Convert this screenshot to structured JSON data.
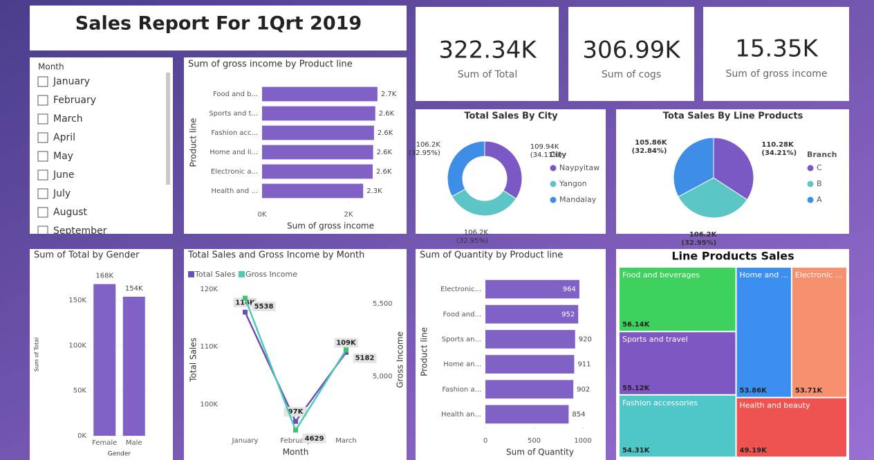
{
  "title": "Sales Report For 1Qrt 2019",
  "kpis": [
    {
      "value": "322.34K",
      "label": "Sum of Total"
    },
    {
      "value": "306.99K",
      "label": "Sum of cogs"
    },
    {
      "value": "15.35K",
      "label": "Sum of gross income"
    }
  ],
  "slicer": {
    "title": "Month",
    "items": [
      "January",
      "February",
      "March",
      "April",
      "May",
      "June",
      "July",
      "August",
      "September"
    ]
  },
  "chart_data": [
    {
      "type": "hbar",
      "title": "Sum of gross income by Product line",
      "x_label": "Sum of gross income",
      "y_label": "Product line",
      "categories": [
        "Food and b...",
        "Sports and t...",
        "Fashion acc...",
        "Home and li...",
        "Electronic a...",
        "Health and ..."
      ],
      "values": [
        2670,
        2620,
        2590,
        2570,
        2560,
        2340
      ],
      "value_labels": [
        "2.7K",
        "2.6K",
        "2.6K",
        "2.6K",
        "2.6K",
        "2.3K"
      ],
      "color": "#8062c6",
      "xlim": [
        0,
        2800
      ],
      "xticks": [
        {
          "value": 0,
          "label": "0K"
        },
        {
          "value": 2000,
          "label": "2K"
        }
      ]
    },
    {
      "type": "donut",
      "title": "Total Sales By City",
      "legend_title": "City",
      "categories": [
        "Naypyitaw",
        "Yangon",
        "Mandalay"
      ],
      "values": [
        109940,
        106200,
        106200
      ],
      "value_labels": [
        "109.94K",
        "106.2K",
        "106.2K"
      ],
      "percent_labels": [
        "(34.11%)",
        "(32.95%)",
        "(32.95%)"
      ],
      "colors": [
        "#7b59c4",
        "#5cc6c6",
        "#3e8ee8"
      ]
    },
    {
      "type": "pie",
      "title": "Tota Sales By Line Products",
      "legend_title": "Branch",
      "categories": [
        "C",
        "B",
        "A"
      ],
      "values": [
        110280,
        106200,
        105860
      ],
      "value_labels": [
        "110.28K",
        "106.2K",
        "105.86K"
      ],
      "percent_labels": [
        "(34.21%)",
        "(32.95%)",
        "(32.84%)"
      ],
      "colors": [
        "#7b59c4",
        "#5cc6c6",
        "#3e8ee8"
      ]
    },
    {
      "type": "bar",
      "title": "Sum of Total by Gender",
      "x_label": "Gender",
      "y_label": "Sum of Total",
      "categories": [
        "Female",
        "Male"
      ],
      "values": [
        168000,
        154000
      ],
      "value_labels": [
        "168K",
        "154K"
      ],
      "color": "#8062c6",
      "ylim": [
        0,
        180000
      ],
      "yticks": [
        {
          "value": 0,
          "label": "0K"
        },
        {
          "value": 50000,
          "label": "50K"
        },
        {
          "value": 100000,
          "label": "100K"
        },
        {
          "value": 150000,
          "label": "150K"
        }
      ]
    },
    {
      "type": "line",
      "title": "Total Sales and Gross Income by Month",
      "x_label": "Month",
      "y_label": "Total Sales",
      "y2_label": "Gross Income",
      "categories": [
        "January",
        "February",
        "March"
      ],
      "series": [
        {
          "name": "Total Sales",
          "color": "#6b4fb5",
          "values": [
            116000,
            97000,
            109000
          ],
          "value_labels": [
            "116K",
            "97K",
            "109K"
          ]
        },
        {
          "name": "Gross Income",
          "color": "#4cc9b8",
          "axis": "y2",
          "values": [
            5538,
            4629,
            5182
          ]
        }
      ],
      "ylim": [
        94500,
        120000
      ],
      "yticks": [
        {
          "value": 100000,
          "label": "100K"
        },
        {
          "value": 110000,
          "label": "110K"
        },
        {
          "value": 120000,
          "label": "120K"
        }
      ],
      "y2lim": [
        4590,
        5600
      ],
      "y2ticks": [
        {
          "value": 5000,
          "label": "5,000"
        },
        {
          "value": 5500,
          "label": "5,500"
        }
      ]
    },
    {
      "type": "hbar",
      "title": "Sum of Quantity by Product line",
      "x_label": "Sum of Quantity",
      "y_label": "Product line",
      "categories": [
        "Electronic...",
        "Food and...",
        "Sports an...",
        "Home an...",
        "Fashion a...",
        "Health an..."
      ],
      "values": [
        964,
        952,
        920,
        911,
        902,
        854
      ],
      "color": "#8062c6",
      "xlim": [
        0,
        1000
      ],
      "xticks": [
        0,
        500,
        1000
      ]
    },
    {
      "type": "treemap",
      "title": "Line Products Sales",
      "categories": [
        "Food and beverages",
        "Sports and travel",
        "Fashion accessories",
        "Home and ...",
        "Electronic ...",
        "Health and beauty"
      ],
      "values": [
        56140,
        55120,
        54310,
        53860,
        53710,
        49190
      ],
      "value_labels": [
        "56.14K",
        "55.12K",
        "54.31K",
        "53.86K",
        "53.71K",
        "49.19K"
      ],
      "colors": [
        "#3ed15e",
        "#7e57c2",
        "#4fc7c7",
        "#3b8ff0",
        "#f7906f",
        "#ef5350"
      ]
    }
  ]
}
